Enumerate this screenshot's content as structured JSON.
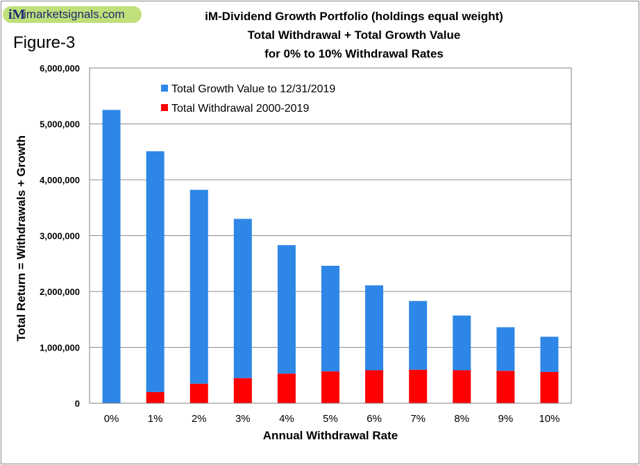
{
  "logo": {
    "mark": "iM",
    "text": "imarketsignals.com"
  },
  "figure_label": "Figure-3",
  "title_lines": [
    "iM-Dividend  Growth Portfolio  (holdings  equal weight)",
    "Total Withdrawal + Total Growth Value",
    "for  0% to 10% Withdrawal Rates"
  ],
  "colors": {
    "growth": "#2e86e6",
    "withdrawal": "#ff0000",
    "grid": "#8c8c8c"
  },
  "chart_data": {
    "type": "bar",
    "stacked": true,
    "categories": [
      "0%",
      "1%",
      "2%",
      "3%",
      "4%",
      "5%",
      "6%",
      "7%",
      "8%",
      "9%",
      "10%"
    ],
    "series": [
      {
        "name": "Total Withdrawal 2000-2019",
        "values": [
          0,
          200000,
          350000,
          450000,
          530000,
          570000,
          590000,
          600000,
          590000,
          580000,
          560000
        ]
      },
      {
        "name": "Total Growth Value to 12/31/2019",
        "values": [
          5250000,
          4310000,
          3470000,
          2850000,
          2300000,
          1890000,
          1520000,
          1230000,
          980000,
          780000,
          630000
        ]
      }
    ],
    "xlabel": "Annual Withdrawal Rate",
    "ylabel": "Total Return = Withdrawals + Growth",
    "ylim": [
      0,
      6000000
    ],
    "yticks": [
      0,
      1000000,
      2000000,
      3000000,
      4000000,
      5000000,
      6000000
    ],
    "ytick_labels": [
      "0",
      "1,000,000",
      "2,000,000",
      "3,000,000",
      "4,000,000",
      "5,000,000",
      "6,000,000"
    ],
    "grid": true,
    "legend_position": "top-left"
  }
}
